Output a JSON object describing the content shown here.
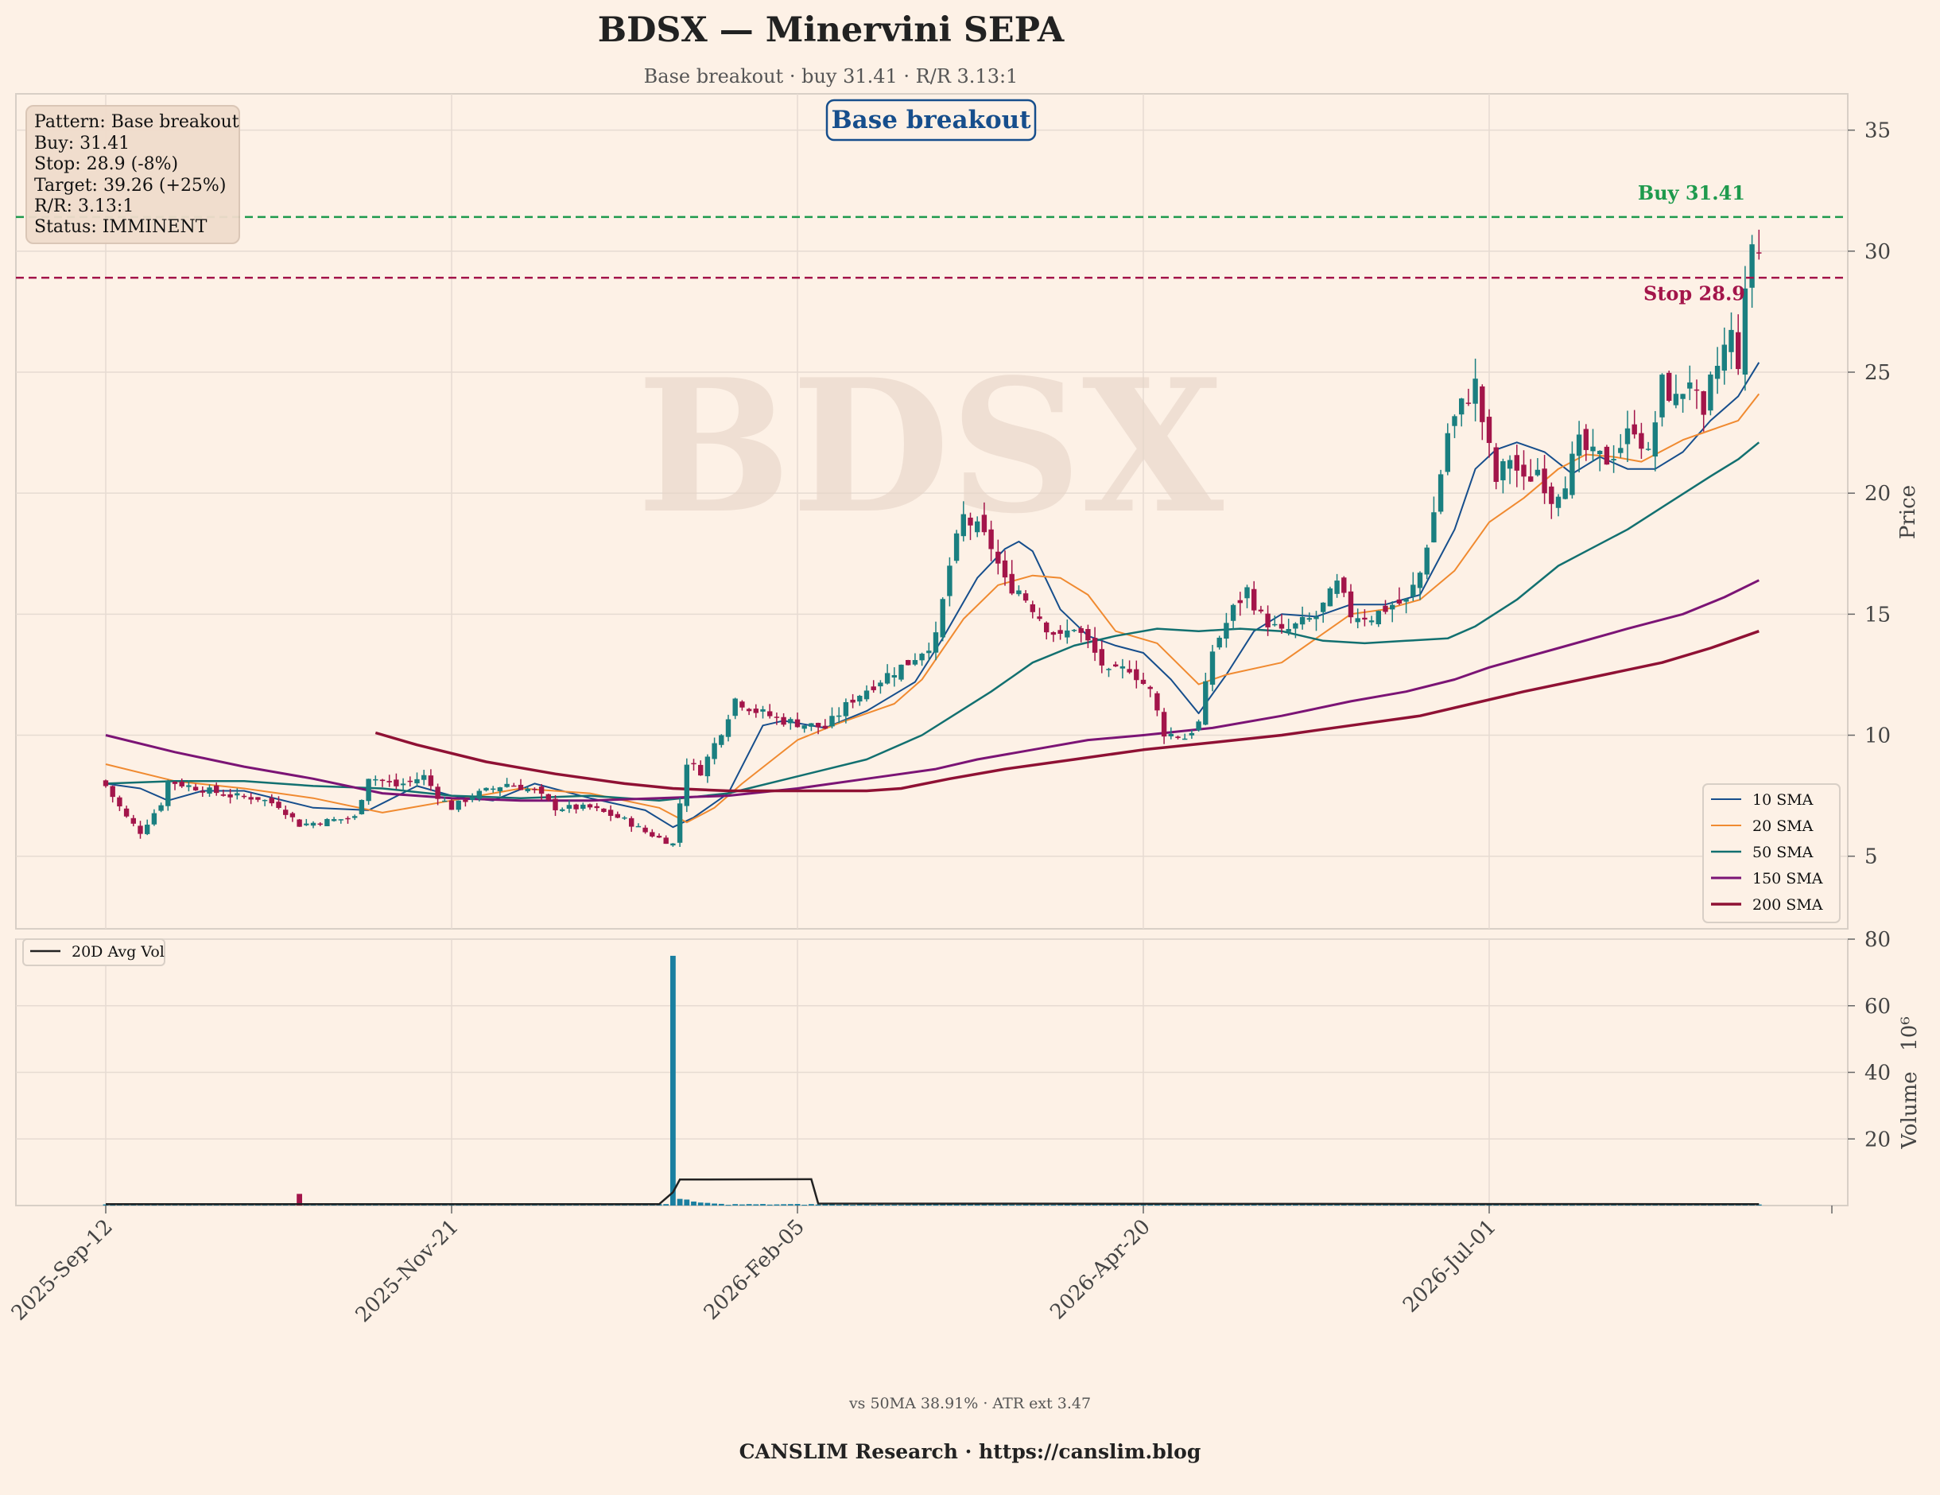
{
  "header": {
    "title": "BDSX — Minervini SEPA",
    "subtitle": "Base breakout · buy 31.41 · R/R 3.13:1"
  },
  "info_box": {
    "lines": [
      "Pattern: Base breakout",
      "Buy: 31.41",
      "Stop: 28.9 (-8%)",
      "Target: 39.26 (+25%)",
      "R/R: 3.13:1",
      "Status: IMMINENT"
    ]
  },
  "pattern_badge": "Base breakout",
  "watermark": "BDSX",
  "footer": {
    "stats": "vs 50MA 38.91% · ATR ext 3.47",
    "brand": "CANSLIM Research  ·  https://canslim.blog"
  },
  "colors": {
    "background": "#fdf1e6",
    "up": "#1a7f80",
    "down": "#a3154a",
    "buy_line": "#1e9a4d",
    "stop_line": "#a3154a",
    "sma10": "#164e8c",
    "sma20": "#f08a30",
    "sma50": "#127070",
    "sma150": "#7b1475",
    "sma200": "#8f1134",
    "volume": "#1a7fa0"
  },
  "chart_data": [
    {
      "type": "candlestick",
      "ylabel": "Price",
      "ylim": [
        2,
        36.5
      ],
      "yticks": [
        5,
        10,
        15,
        20,
        25,
        30,
        35
      ],
      "xtick_labels": [
        "2025-Sep-12",
        "2025-Nov-21",
        "2026-Feb-05",
        "2026-Apr-20",
        "2026-Jul-01"
      ],
      "xtick_index": [
        0,
        50,
        100,
        150,
        200
      ],
      "n_bars": 240,
      "grid": true,
      "legend_position": "lower-right",
      "levels": [
        {
          "name": "Buy",
          "value": 31.41,
          "label": "Buy 31.41"
        },
        {
          "name": "Stop",
          "value": 28.9,
          "label": "Stop 28.9"
        }
      ],
      "close_keypoints": [
        [
          0,
          7.9
        ],
        [
          3,
          6.6
        ],
        [
          5,
          6.0
        ],
        [
          8,
          7.2
        ],
        [
          9,
          8.1
        ],
        [
          12,
          7.9
        ],
        [
          18,
          7.5
        ],
        [
          22,
          7.4
        ],
        [
          25,
          7.1
        ],
        [
          28,
          6.3
        ],
        [
          33,
          6.5
        ],
        [
          36,
          6.6
        ],
        [
          38,
          8.3
        ],
        [
          42,
          7.9
        ],
        [
          46,
          8.3
        ],
        [
          48,
          7.5
        ],
        [
          50,
          7.0
        ],
        [
          53,
          7.5
        ],
        [
          58,
          8.0
        ],
        [
          62,
          7.7
        ],
        [
          65,
          7.0
        ],
        [
          70,
          7.0
        ],
        [
          75,
          6.5
        ],
        [
          78,
          6.0
        ],
        [
          82,
          5.5
        ],
        [
          84,
          8.9
        ],
        [
          86,
          8.5
        ],
        [
          89,
          10.2
        ],
        [
          91,
          11.5
        ],
        [
          94,
          11.0
        ],
        [
          98,
          10.6
        ],
        [
          104,
          10.3
        ],
        [
          108,
          11.5
        ],
        [
          113,
          12.5
        ],
        [
          116,
          13.0
        ],
        [
          120,
          14.0
        ],
        [
          122,
          17.0
        ],
        [
          124,
          19.0
        ],
        [
          126,
          18.5
        ],
        [
          128,
          17.8
        ],
        [
          130,
          16.3
        ],
        [
          132,
          16.0
        ],
        [
          134,
          15.3
        ],
        [
          136,
          14.5
        ],
        [
          138,
          14.0
        ],
        [
          140,
          14.5
        ],
        [
          142,
          13.8
        ],
        [
          145,
          12.5
        ],
        [
          148,
          12.8
        ],
        [
          151,
          11.8
        ],
        [
          153,
          10.1
        ],
        [
          156,
          9.9
        ],
        [
          158,
          10.5
        ],
        [
          160,
          13.5
        ],
        [
          163,
          15.2
        ],
        [
          165,
          16.0
        ],
        [
          167,
          14.9
        ],
        [
          170,
          14.2
        ],
        [
          172,
          14.5
        ],
        [
          175,
          14.9
        ],
        [
          178,
          16.2
        ],
        [
          180,
          15.0
        ],
        [
          183,
          14.9
        ],
        [
          186,
          15.4
        ],
        [
          188,
          15.5
        ],
        [
          190,
          16.7
        ],
        [
          192,
          19.2
        ],
        [
          194,
          22.5
        ],
        [
          196,
          23.6
        ],
        [
          198,
          24.5
        ],
        [
          199,
          23.0
        ],
        [
          201,
          20.5
        ],
        [
          203,
          21.5
        ],
        [
          205,
          20.4
        ],
        [
          207,
          21.0
        ],
        [
          209,
          19.8
        ],
        [
          211,
          20.6
        ],
        [
          213,
          22.0
        ],
        [
          215,
          21.5
        ],
        [
          217,
          21.4
        ],
        [
          219,
          22.0
        ],
        [
          221,
          22.8
        ],
        [
          223,
          21.5
        ],
        [
          225,
          24.5
        ],
        [
          227,
          23.8
        ],
        [
          229,
          24.8
        ],
        [
          231,
          22.8
        ],
        [
          232,
          24.5
        ],
        [
          234,
          26.0
        ],
        [
          235,
          26.5
        ],
        [
          236,
          25.5
        ],
        [
          237,
          28.0
        ],
        [
          238,
          30.4
        ],
        [
          239,
          29.9
        ]
      ],
      "series": [
        {
          "name": "10 SMA",
          "keypoints": [
            [
              0,
              8.0
            ],
            [
              5,
              7.8
            ],
            [
              9,
              7.3
            ],
            [
              14,
              7.7
            ],
            [
              20,
              7.7
            ],
            [
              30,
              7.0
            ],
            [
              38,
              6.9
            ],
            [
              45,
              7.9
            ],
            [
              50,
              7.5
            ],
            [
              56,
              7.3
            ],
            [
              62,
              8.0
            ],
            [
              70,
              7.4
            ],
            [
              78,
              6.9
            ],
            [
              82,
              6.2
            ],
            [
              85,
              6.6
            ],
            [
              90,
              7.6
            ],
            [
              95,
              10.4
            ],
            [
              98,
              10.6
            ],
            [
              104,
              10.3
            ],
            [
              110,
              11.0
            ],
            [
              117,
              12.2
            ],
            [
              121,
              14.0
            ],
            [
              126,
              16.5
            ],
            [
              130,
              17.7
            ],
            [
              132,
              18.0
            ],
            [
              134,
              17.6
            ],
            [
              138,
              15.2
            ],
            [
              142,
              14.1
            ],
            [
              146,
              13.7
            ],
            [
              150,
              13.4
            ],
            [
              154,
              12.3
            ],
            [
              158,
              10.9
            ],
            [
              162,
              12.5
            ],
            [
              166,
              14.3
            ],
            [
              170,
              15.0
            ],
            [
              175,
              14.9
            ],
            [
              180,
              15.4
            ],
            [
              185,
              15.4
            ],
            [
              190,
              15.8
            ],
            [
              195,
              18.5
            ],
            [
              198,
              21.0
            ],
            [
              201,
              21.8
            ],
            [
              204,
              22.1
            ],
            [
              208,
              21.7
            ],
            [
              212,
              20.8
            ],
            [
              216,
              21.5
            ],
            [
              220,
              21.0
            ],
            [
              224,
              21.0
            ],
            [
              228,
              21.7
            ],
            [
              232,
              23.0
            ],
            [
              236,
              24.0
            ],
            [
              239,
              25.4
            ]
          ]
        },
        {
          "name": "20 SMA",
          "keypoints": [
            [
              0,
              8.8
            ],
            [
              10,
              8.1
            ],
            [
              20,
              7.8
            ],
            [
              30,
              7.4
            ],
            [
              40,
              6.8
            ],
            [
              50,
              7.3
            ],
            [
              60,
              7.8
            ],
            [
              70,
              7.6
            ],
            [
              80,
              7.0
            ],
            [
              84,
              6.4
            ],
            [
              88,
              7.0
            ],
            [
              92,
              8.0
            ],
            [
              100,
              9.8
            ],
            [
              106,
              10.5
            ],
            [
              114,
              11.3
            ],
            [
              118,
              12.3
            ],
            [
              124,
              14.8
            ],
            [
              129,
              16.2
            ],
            [
              134,
              16.6
            ],
            [
              138,
              16.5
            ],
            [
              142,
              15.8
            ],
            [
              146,
              14.3
            ],
            [
              152,
              13.8
            ],
            [
              158,
              12.1
            ],
            [
              162,
              12.5
            ],
            [
              170,
              13.0
            ],
            [
              175,
              14.0
            ],
            [
              180,
              15.0
            ],
            [
              185,
              15.2
            ],
            [
              190,
              15.6
            ],
            [
              195,
              16.8
            ],
            [
              200,
              18.8
            ],
            [
              205,
              19.8
            ],
            [
              210,
              21.0
            ],
            [
              214,
              21.6
            ],
            [
              218,
              21.5
            ],
            [
              222,
              21.3
            ],
            [
              228,
              22.2
            ],
            [
              232,
              22.6
            ],
            [
              236,
              23.0
            ],
            [
              239,
              24.1
            ]
          ]
        },
        {
          "name": "50 SMA",
          "keypoints": [
            [
              0,
              8.0
            ],
            [
              10,
              8.1
            ],
            [
              20,
              8.1
            ],
            [
              30,
              7.9
            ],
            [
              40,
              7.8
            ],
            [
              50,
              7.5
            ],
            [
              60,
              7.4
            ],
            [
              70,
              7.5
            ],
            [
              80,
              7.3
            ],
            [
              90,
              7.6
            ],
            [
              100,
              8.3
            ],
            [
              110,
              9.0
            ],
            [
              118,
              10.0
            ],
            [
              128,
              11.8
            ],
            [
              134,
              13.0
            ],
            [
              140,
              13.7
            ],
            [
              146,
              14.1
            ],
            [
              152,
              14.4
            ],
            [
              158,
              14.3
            ],
            [
              164,
              14.4
            ],
            [
              170,
              14.3
            ],
            [
              176,
              13.9
            ],
            [
              182,
              13.8
            ],
            [
              188,
              13.9
            ],
            [
              194,
              14.0
            ],
            [
              198,
              14.5
            ],
            [
              204,
              15.6
            ],
            [
              210,
              17.0
            ],
            [
              214,
              17.6
            ],
            [
              220,
              18.5
            ],
            [
              226,
              19.6
            ],
            [
              232,
              20.7
            ],
            [
              236,
              21.4
            ],
            [
              239,
              22.1
            ]
          ]
        },
        {
          "name": "150 SMA",
          "keypoints": [
            [
              0,
              10.0
            ],
            [
              10,
              9.3
            ],
            [
              20,
              8.7
            ],
            [
              30,
              8.2
            ],
            [
              40,
              7.6
            ],
            [
              50,
              7.4
            ],
            [
              60,
              7.3
            ],
            [
              70,
              7.3
            ],
            [
              80,
              7.4
            ],
            [
              90,
              7.5
            ],
            [
              100,
              7.8
            ],
            [
              110,
              8.2
            ],
            [
              120,
              8.6
            ],
            [
              126,
              9.0
            ],
            [
              134,
              9.4
            ],
            [
              142,
              9.8
            ],
            [
              150,
              10.0
            ],
            [
              160,
              10.3
            ],
            [
              170,
              10.8
            ],
            [
              180,
              11.4
            ],
            [
              188,
              11.8
            ],
            [
              195,
              12.3
            ],
            [
              200,
              12.8
            ],
            [
              210,
              13.6
            ],
            [
              220,
              14.4
            ],
            [
              228,
              15.0
            ],
            [
              234,
              15.7
            ],
            [
              239,
              16.4
            ]
          ]
        },
        {
          "name": "200 SMA",
          "keypoints": [
            [
              39,
              10.1
            ],
            [
              45,
              9.6
            ],
            [
              55,
              8.9
            ],
            [
              65,
              8.4
            ],
            [
              75,
              8.0
            ],
            [
              82,
              7.8
            ],
            [
              90,
              7.7
            ],
            [
              100,
              7.7
            ],
            [
              110,
              7.7
            ],
            [
              115,
              7.8
            ],
            [
              122,
              8.2
            ],
            [
              130,
              8.6
            ],
            [
              140,
              9.0
            ],
            [
              150,
              9.4
            ],
            [
              160,
              9.7
            ],
            [
              170,
              10.0
            ],
            [
              180,
              10.4
            ],
            [
              190,
              10.8
            ],
            [
              196,
              11.2
            ],
            [
              205,
              11.8
            ],
            [
              215,
              12.4
            ],
            [
              225,
              13.0
            ],
            [
              232,
              13.6
            ],
            [
              239,
              14.3
            ]
          ]
        }
      ]
    },
    {
      "type": "bar",
      "ylabel": "Volume",
      "yunit_label": "10⁶",
      "ylim": [
        0,
        80
      ],
      "yticks": [
        20,
        40,
        60,
        80
      ],
      "legend_position": "upper-left",
      "base_volume_m": 0.35,
      "spikes": [
        [
          28,
          3.5
        ],
        [
          82,
          75
        ],
        [
          83,
          2.0
        ],
        [
          84,
          1.8
        ],
        [
          85,
          1.2
        ],
        [
          86,
          0.9
        ],
        [
          87,
          0.8
        ],
        [
          88,
          0.6
        ],
        [
          89,
          0.5
        ]
      ],
      "series": [
        {
          "name": "20D Avg Vol",
          "keypoints": [
            [
              0,
              0.4
            ],
            [
              80,
              0.4
            ],
            [
              82,
              4.0
            ],
            [
              83,
              7.8
            ],
            [
              102,
              7.9
            ],
            [
              103,
              0.6
            ],
            [
              239,
              0.4
            ]
          ]
        }
      ]
    }
  ]
}
